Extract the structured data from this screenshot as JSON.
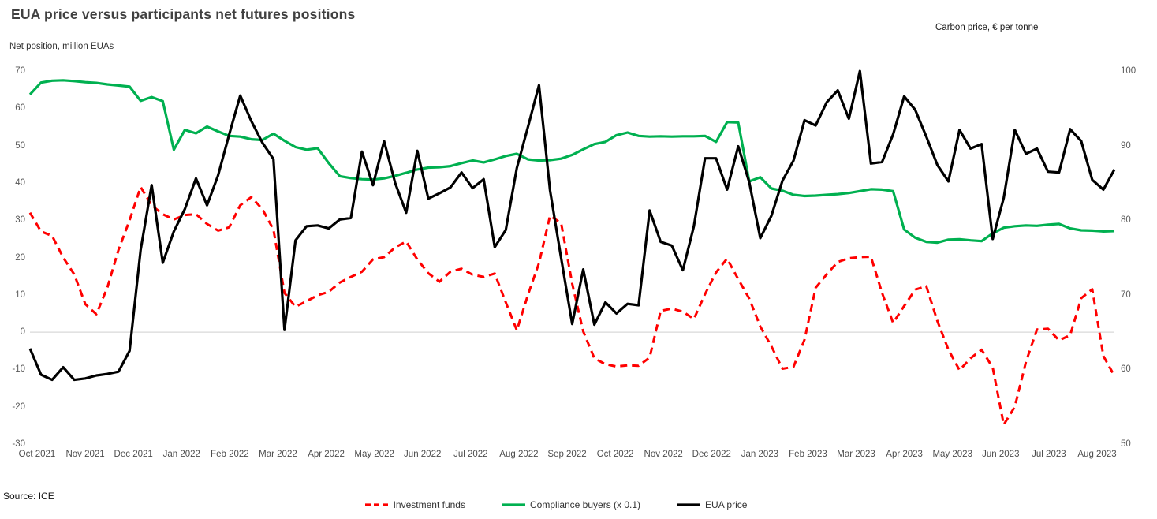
{
  "title": "EUA price versus participants net futures positions",
  "source": "Source: ICE",
  "left_axis": {
    "title": "Net position, million EUAs",
    "min": -30,
    "max": 70,
    "ticks": [
      70,
      60,
      50,
      40,
      30,
      20,
      10,
      0,
      -10,
      -20,
      -30
    ]
  },
  "right_axis": {
    "title": "Carbon price, € per tonne",
    "min": 50,
    "max": 100,
    "ticks": [
      100,
      90,
      80,
      70,
      60,
      50
    ]
  },
  "legend": [
    {
      "label": "Investment funds",
      "color": "#FF0000",
      "dashed": true
    },
    {
      "label": "Compliance buyers (x 0.1)",
      "color": "#00B050",
      "dashed": false
    },
    {
      "label": "EUA price",
      "color": "#000000",
      "dashed": false
    }
  ],
  "colors": {
    "grid": "#d9d9d9",
    "red": "#FF0000",
    "green": "#00B050",
    "black": "#000000"
  },
  "chart_data": {
    "type": "line",
    "title": "EUA price versus participants net futures positions",
    "x_tick_labels": [
      "Oct 2021",
      "Nov 2021",
      "Dec 2021",
      "Jan 2022",
      "Feb 2022",
      "Mar 2022",
      "Apr 2022",
      "May 2022",
      "Jun 2022",
      "Jul 2022",
      "Aug 2022",
      "Sep 2022",
      "Oct 2022",
      "Nov 2022",
      "Dec 2022",
      "Jan 2023",
      "Feb 2023",
      "Mar 2023",
      "Apr 2023",
      "May 2023",
      "Jun 2023",
      "Jul 2023",
      "Aug 2023"
    ],
    "x_note": "weekly observations, evenly spaced, Oct 2021 - Aug 2023",
    "grid": "horizontal zero line only",
    "legend_position": "bottom center",
    "series": [
      {
        "name": "Investment funds",
        "axis": "left",
        "color": "#FF0000",
        "dashed": true,
        "values": [
          32,
          27,
          25.8,
          20,
          15.5,
          7.5,
          4.8,
          12,
          22,
          30,
          38.9,
          34,
          31.6,
          30.2,
          31.4,
          31.6,
          29,
          27.2,
          28.1,
          34,
          36.2,
          33,
          27.5,
          10.5,
          6.8,
          8.3,
          9.9,
          10.8,
          13.3,
          14.8,
          16.2,
          19.5,
          20.1,
          22.7,
          24.3,
          19.5,
          15.8,
          13.5,
          16.2,
          17,
          15.4,
          14.8,
          15.7,
          8,
          0.5,
          10,
          18.5,
          31.2,
          29.2,
          13,
          0.2,
          -7,
          -8.6,
          -9.2,
          -8.9,
          -9,
          -6.8,
          5.7,
          6.3,
          5.5,
          3.5,
          10.2,
          16,
          19.7,
          14.2,
          9,
          1.5,
          -3.8,
          -9.8,
          -9.3,
          -2,
          11.9,
          15.5,
          18.8,
          19.8,
          20.1,
          20.2,
          10.5,
          2.5,
          7,
          11.4,
          12.3,
          3,
          -4.7,
          -10.2,
          -7,
          -4.7,
          -9.5,
          -24.8,
          -20,
          -8,
          0.7,
          0.9,
          -2.2,
          -0.8,
          9.1,
          11.5,
          -6.4,
          -11.7
        ]
      },
      {
        "name": "Compliance buyers (x 0.1)",
        "axis": "left",
        "color": "#00B050",
        "dashed": false,
        "values": [
          63.7,
          66.9,
          67.4,
          67.5,
          67.3,
          67,
          66.8,
          66.4,
          66.1,
          65.8,
          62,
          63,
          61.9,
          48.9,
          54.2,
          53.3,
          55.1,
          53.8,
          52.6,
          52.4,
          51.7,
          51.5,
          53.2,
          51.3,
          49.6,
          48.9,
          49.3,
          45.3,
          41.8,
          41.3,
          41,
          40.9,
          41.2,
          41.9,
          42.7,
          43.6,
          44.1,
          44.2,
          44.5,
          45.3,
          46,
          45.5,
          46.3,
          47.2,
          47.8,
          46.3,
          46,
          46.1,
          46.5,
          47.5,
          49,
          50.4,
          51,
          52.8,
          53.5,
          52.6,
          52.4,
          52.5,
          52.4,
          52.5,
          52.5,
          52.6,
          51,
          56.3,
          56.2,
          40.4,
          41.5,
          38.5,
          37.9,
          36.8,
          36.5,
          36.6,
          36.8,
          37,
          37.3,
          37.8,
          38.3,
          38.2,
          37.8,
          27.5,
          25.3,
          24.2,
          24,
          24.8,
          24.9,
          24.6,
          24.4,
          26.5,
          28,
          28.4,
          28.6,
          28.5,
          28.8,
          29,
          27.8,
          27.3,
          27.2,
          27,
          27.1
        ]
      },
      {
        "name": "EUA price",
        "axis": "right",
        "color": "#000000",
        "dashed": false,
        "values": [
          62.8,
          59.3,
          58.6,
          60.3,
          58.6,
          58.8,
          59.2,
          59.4,
          59.7,
          62.5,
          76,
          84.7,
          74.3,
          78.5,
          81.5,
          85.6,
          82,
          86,
          91.5,
          96.7,
          93.3,
          90.4,
          88.2,
          65.3,
          77.3,
          79.2,
          79.3,
          78.9,
          80.1,
          80.3,
          89.2,
          84.7,
          90.6,
          85,
          81,
          89.3,
          82.9,
          83.6,
          84.4,
          86.4,
          84.3,
          85.5,
          76.4,
          78.7,
          87,
          92.5,
          98.1,
          84,
          74.9,
          66.1,
          73.4,
          66,
          69,
          67.5,
          68.8,
          68.6,
          81.3,
          77.1,
          76.6,
          73.3,
          79.2,
          88.3,
          88.3,
          84.1,
          89.9,
          85.1,
          77.6,
          80.6,
          85.3,
          88,
          93.4,
          92.7,
          95.8,
          97.4,
          93.6,
          100,
          87.6,
          87.8,
          91.5,
          96.6,
          94.8,
          91.2,
          87.4,
          85.2,
          92.1,
          89.6,
          90.2,
          77.5,
          83,
          92.1,
          88.9,
          89.6,
          86.5,
          86.4,
          92.2,
          90.6,
          85.4,
          84.1,
          86.8
        ]
      }
    ]
  }
}
